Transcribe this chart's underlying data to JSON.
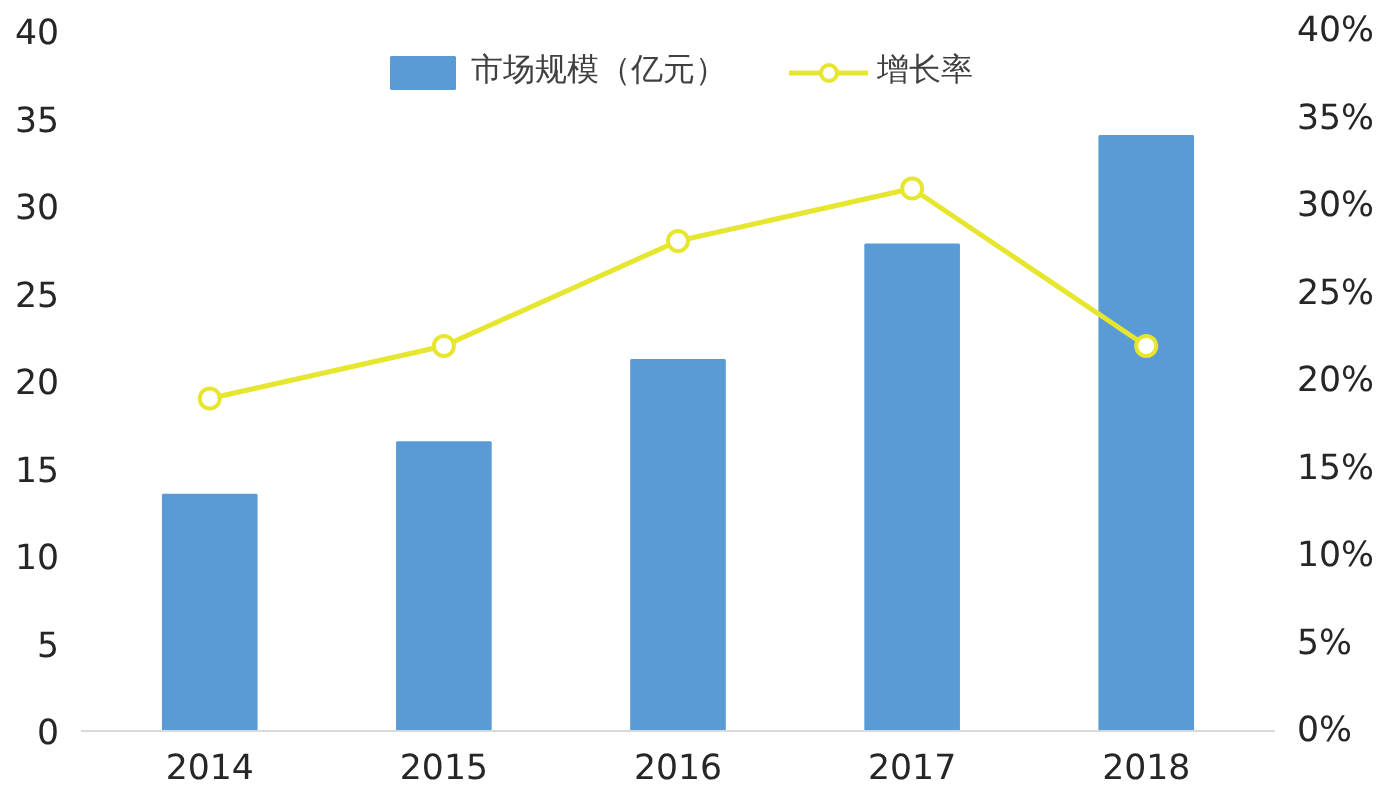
{
  "chart_data": {
    "type": "bar",
    "categories": [
      "2014",
      "2015",
      "2016",
      "2017",
      "2018"
    ],
    "series": [
      {
        "name": "市场规模（亿元）",
        "color": "#5b9bd5",
        "values": [
          13.5,
          16.5,
          21.2,
          27.8,
          34.0
        ]
      },
      {
        "name": "增长率",
        "type": "line",
        "axis": "y2",
        "color": "#e6e62e",
        "marker": "circle",
        "values": [
          19,
          22,
          28,
          31,
          22
        ]
      }
    ],
    "ylim": [
      0,
      40
    ],
    "yticks": [
      0,
      5,
      10,
      15,
      20,
      25,
      30,
      35,
      40
    ],
    "y2lim": [
      0,
      40
    ],
    "y2ticks": [
      {
        "value": 0,
        "label": "0%"
      },
      {
        "value": 5,
        "label": "5%"
      },
      {
        "value": 10,
        "label": "10%"
      },
      {
        "value": 15,
        "label": "15%"
      },
      {
        "value": 20,
        "label": "20%"
      },
      {
        "value": 25,
        "label": "25%"
      },
      {
        "value": 30,
        "label": "30%"
      },
      {
        "value": 35,
        "label": "35%"
      },
      {
        "value": 40,
        "label": "40%"
      }
    ],
    "grid": false,
    "legend": "top"
  }
}
